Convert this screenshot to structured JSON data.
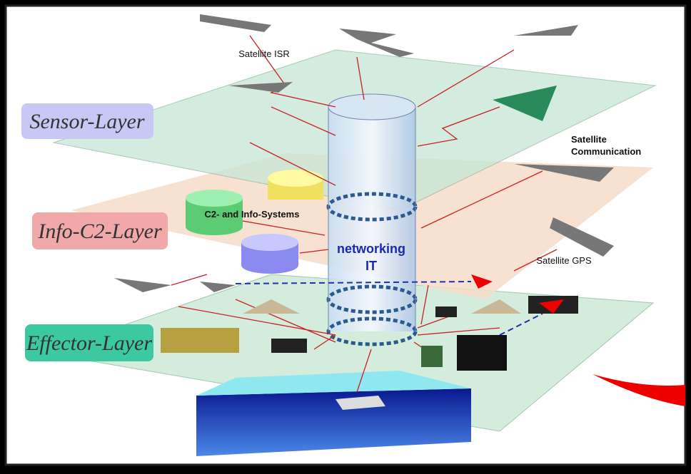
{
  "layers": [
    {
      "label": "Sensor-Layer"
    },
    {
      "label": "Info-C2-Layer"
    },
    {
      "label": "Effector-Layer"
    }
  ],
  "hub": {
    "label_lines": [
      "networking",
      "IT"
    ]
  },
  "nodes": [
    {
      "label": "Satellite ISR"
    },
    {
      "label_lines": [
        "Satellite",
        "Communication"
      ]
    },
    {
      "label": "C2- and Info-Systems"
    },
    {
      "label": "Satellite GPS"
    }
  ]
}
